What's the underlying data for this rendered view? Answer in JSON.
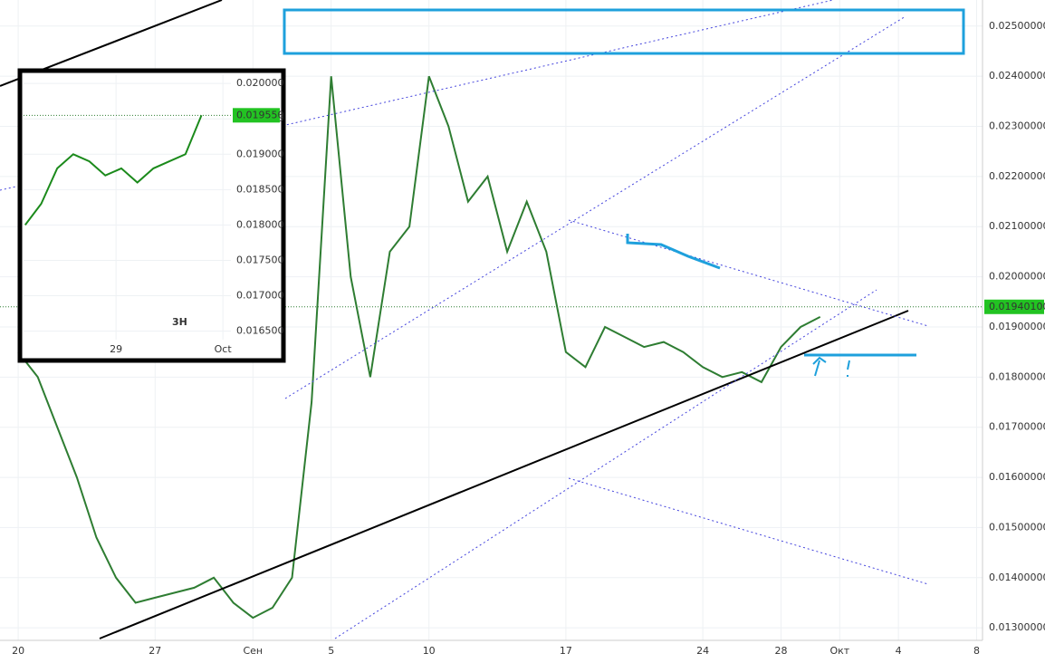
{
  "chart_data": [
    {
      "type": "line",
      "color": "#2e7d32",
      "x": [
        0,
        1,
        2,
        3,
        4,
        5,
        6,
        7,
        8,
        9,
        10,
        11,
        12,
        13,
        14,
        15,
        16,
        17,
        18,
        19,
        20,
        21,
        22,
        23,
        24,
        25,
        26,
        27,
        28,
        29,
        30,
        31,
        32,
        33,
        34,
        35,
        36,
        37,
        38,
        39,
        40,
        41
      ],
      "values": [
        0.0185,
        0.018,
        0.017,
        0.016,
        0.0148,
        0.014,
        0.0135,
        0.0136,
        0.0137,
        0.0138,
        0.014,
        0.0135,
        0.0132,
        0.0134,
        0.014,
        0.0175,
        0.024,
        0.02,
        0.018,
        0.0205,
        0.021,
        0.024,
        0.023,
        0.0215,
        0.022,
        0.0205,
        0.0215,
        0.0205,
        0.0185,
        0.0182,
        0.019,
        0.0188,
        0.0186,
        0.0187,
        0.0185,
        0.0182,
        0.018,
        0.0181,
        0.0179,
        0.0186,
        0.019,
        0.0192
      ],
      "xlim": [
        -0.93,
        49.3
      ],
      "ylim": [
        0.01275,
        0.02552
      ],
      "xticks": [
        {
          "value": 0,
          "label": "20"
        },
        {
          "value": 7,
          "label": "27"
        },
        {
          "value": 12,
          "label": "Сен"
        },
        {
          "value": 16,
          "label": "5"
        },
        {
          "value": 21,
          "label": "10"
        },
        {
          "value": 28,
          "label": "17"
        },
        {
          "value": 35,
          "label": "24"
        },
        {
          "value": 39,
          "label": "28"
        },
        {
          "value": 42,
          "label": "Окт"
        },
        {
          "value": 45,
          "label": "4"
        },
        {
          "value": 49,
          "label": "8"
        }
      ],
      "yticks": [
        {
          "value": 0.025,
          "label": "0.02500000"
        },
        {
          "value": 0.024,
          "label": "0.02400000"
        },
        {
          "value": 0.023,
          "label": "0.02300000"
        },
        {
          "value": 0.022,
          "label": "0.02200000"
        },
        {
          "value": 0.021,
          "label": "0.02100000"
        },
        {
          "value": 0.02,
          "label": "0.02000000"
        },
        {
          "value": 0.019,
          "label": "0.01900000"
        },
        {
          "value": 0.018,
          "label": "0.01800000"
        },
        {
          "value": 0.017,
          "label": "0.01700000"
        },
        {
          "value": 0.016,
          "label": "0.01600000"
        },
        {
          "value": 0.015,
          "label": "0.01500000"
        },
        {
          "value": 0.014,
          "label": "0.01400000"
        },
        {
          "value": 0.013,
          "label": "0.01300000"
        }
      ],
      "last_price": {
        "value": 0.019401,
        "label": "0.01940100"
      },
      "grid": true
    },
    {
      "type": "line",
      "color": "#1b8a1b",
      "annotation": "3H",
      "x": [
        -1.7,
        -1.4,
        -1.1,
        -0.8,
        -0.5,
        -0.2,
        0.1,
        0.4,
        0.7,
        1.0,
        1.3,
        1.6
      ],
      "values": [
        0.018,
        0.0183,
        0.0188,
        0.019,
        0.0189,
        0.0187,
        0.0188,
        0.0186,
        0.0188,
        0.0189,
        0.019,
        0.01955
      ],
      "xlim": [
        -1.73,
        2.15
      ],
      "ylim": [
        0.01638,
        0.02013
      ],
      "xticks": [
        {
          "value": 0,
          "label": "29"
        },
        {
          "value": 2,
          "label": "Oct"
        }
      ],
      "yticks": [
        {
          "value": 0.02,
          "label": "0.020000"
        },
        {
          "value": 0.0195,
          "label": "0.019500"
        },
        {
          "value": 0.019,
          "label": "0.019000"
        },
        {
          "value": 0.0185,
          "label": "0.018500"
        },
        {
          "value": 0.018,
          "label": "0.018000"
        },
        {
          "value": 0.0175,
          "label": "0.017500"
        },
        {
          "value": 0.017,
          "label": "0.017000"
        },
        {
          "value": 0.0165,
          "label": "0.016500"
        }
      ],
      "last_price": {
        "value": 0.01955,
        "label": "0.019550"
      },
      "grid": true
    }
  ]
}
